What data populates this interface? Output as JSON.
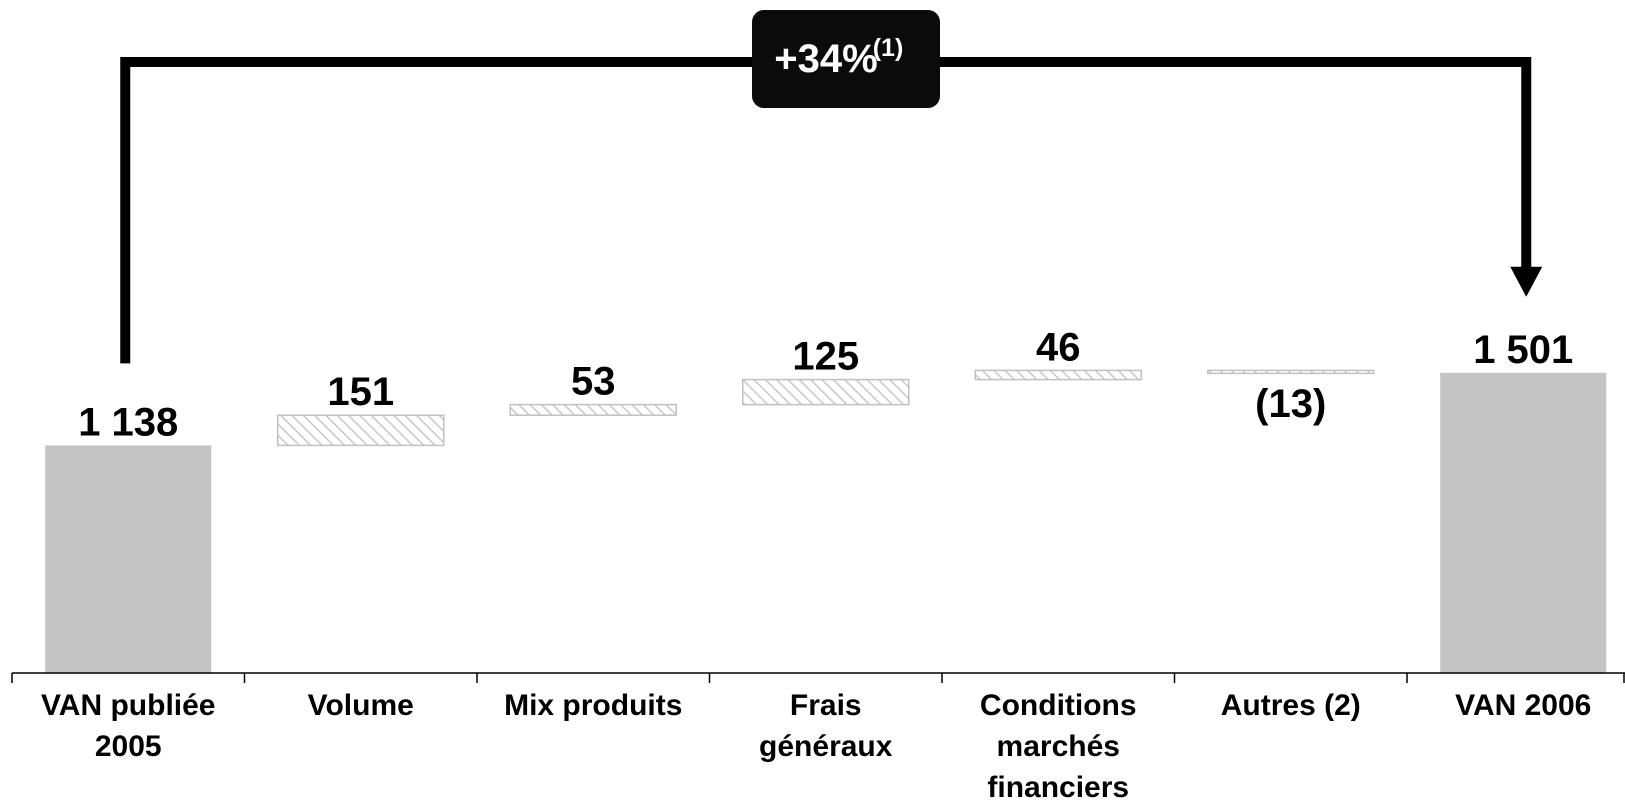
{
  "chart_data": {
    "type": "waterfall",
    "categories": [
      [
        "VAN publiée",
        "2005"
      ],
      [
        "Volume"
      ],
      [
        "Mix produits"
      ],
      [
        "Frais",
        "généraux"
      ],
      [
        "Conditions",
        "marchés",
        "financiers"
      ],
      [
        "Autres (2)"
      ],
      [
        "VAN 2006"
      ]
    ],
    "values": [
      1138,
      151,
      53,
      125,
      46,
      -13,
      1501
    ],
    "kinds": [
      "total",
      "delta",
      "delta",
      "delta",
      "delta",
      "delta",
      "total"
    ],
    "value_labels": [
      "1 138",
      "151",
      "53",
      "125",
      "46",
      "(13)",
      "1 501"
    ],
    "ylim": [
      0,
      1800
    ],
    "growth_badge": {
      "text": "+34%",
      "sup": "(1)"
    },
    "colors": {
      "total_bar": "#c4c4c4",
      "delta_hatch": "#c8c8c8",
      "delta_border": "#c0c0c0",
      "badge_bg": "#0b0b0b",
      "arrow": "#000000",
      "axis": "#000000"
    }
  }
}
